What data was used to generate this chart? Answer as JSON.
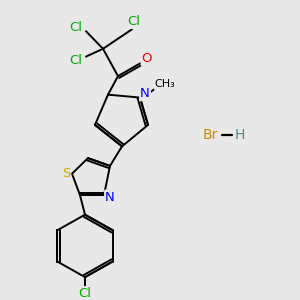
{
  "bg_color": "#e8e8e8",
  "atom_colors": {
    "Cl_green": "#00aa00",
    "O": "#ff0000",
    "N": "#0000ee",
    "S": "#ccaa00",
    "Br": "#cc8800",
    "H": "#4a8a8a",
    "black": "#000000"
  },
  "bond_lw": 1.4,
  "font_size": 9.5
}
